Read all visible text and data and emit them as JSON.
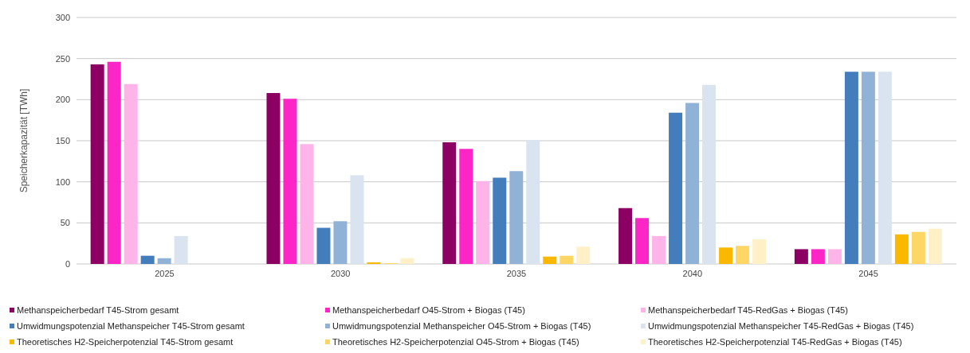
{
  "chart_data": {
    "type": "bar",
    "ylabel": "Speicherkapazität [TWh]",
    "categories": [
      "2025",
      "2030",
      "2035",
      "2040",
      "2045"
    ],
    "series": [
      {
        "name": "Methanspeicherbedarf T45-Strom gesamt",
        "color": "#8b0062",
        "values": [
          243,
          208,
          148,
          68,
          18
        ]
      },
      {
        "name": "Methanspeicherbedarf O45-Strom + Biogas (T45)",
        "color": "#fc26c6",
        "values": [
          246,
          201,
          140,
          56,
          18
        ]
      },
      {
        "name": "Methanspeicherbedarf T45-RedGas + Biogas (T45)",
        "color": "#feb4e8",
        "values": [
          219,
          146,
          101,
          34,
          18
        ]
      },
      {
        "name": "Umwidmungspotenzial Methanspeicher T45-Strom gesamt",
        "color": "#437dbc",
        "values": [
          10,
          44,
          105,
          184,
          234
        ]
      },
      {
        "name": "Umwidmungspotenzial Methanspeicher O45-Strom + Biogas (T45)",
        "color": "#90b2d7",
        "values": [
          7,
          52,
          113,
          196,
          234
        ]
      },
      {
        "name": "Umwidmungspotenzial Methanspeicher T45-RedGas + Biogas (T45)",
        "color": "#d9e4f0",
        "values": [
          34,
          108,
          151,
          218,
          234
        ]
      },
      {
        "name": "Theoretisches H2-Speicherpotenzial T45-Strom gesamt",
        "color": "#fbb800",
        "values": [
          0,
          2,
          9,
          20,
          36
        ]
      },
      {
        "name": "Theoretisches H2-Speicherpotenzial O45-Strom + Biogas (T45)",
        "color": "#fed665",
        "values": [
          0,
          1,
          10,
          22,
          39
        ]
      },
      {
        "name": "Theoretisches H2-Speicherpotenzial T45-RedGas + Biogas (T45)",
        "color": "#fff0c7",
        "values": [
          0,
          7,
          21,
          30,
          43
        ]
      }
    ],
    "ylim": [
      0,
      300
    ],
    "yticks": [
      0,
      50,
      100,
      150,
      200,
      250,
      300
    ],
    "grid": "y",
    "legend": "bottom"
  }
}
